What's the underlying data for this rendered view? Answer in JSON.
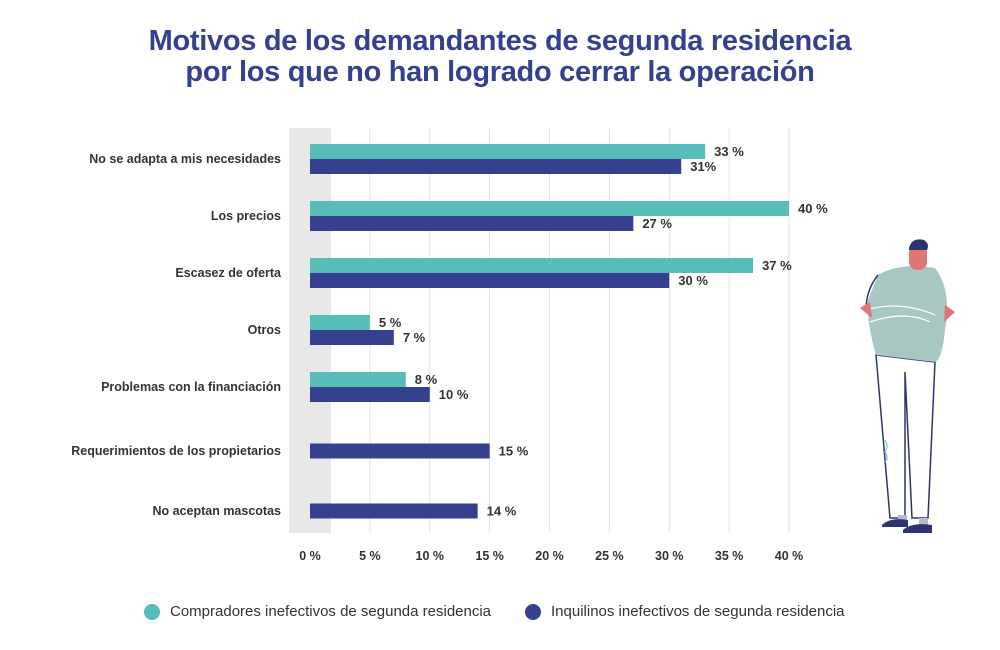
{
  "title_lines": [
    "Motivos de los demandantes de segunda residencia",
    "por los que no han logrado cerrar la operación"
  ],
  "chart_data": {
    "type": "bar",
    "orientation": "horizontal",
    "title": "Motivos de los demandantes de segunda residencia por los que no han logrado cerrar la operación",
    "categories": [
      "No se adapta a mis necesidades",
      "Los precios",
      "Escasez de oferta",
      "Otros",
      "Problemas con la financiación",
      "Requerimientos de los propietarios",
      "No aceptan mascotas"
    ],
    "series": [
      {
        "name": "Compradores inefectivos de segunda residencia",
        "color": "#56bdb8",
        "values": [
          33,
          40,
          37,
          5,
          8,
          null,
          null
        ],
        "labels": [
          "33 %",
          "40 %",
          "37 %",
          "5 %",
          "8 %",
          null,
          null
        ]
      },
      {
        "name": "Inquilinos inefectivos de segunda residencia",
        "color": "#35418f",
        "values": [
          31,
          27,
          30,
          7,
          10,
          15,
          14
        ],
        "labels": [
          "31%",
          "27 %",
          "30 %",
          "7 %",
          "10 %",
          "15 %",
          "14 %"
        ]
      }
    ],
    "xlim": [
      0,
      40
    ],
    "ticks": [
      0,
      5,
      10,
      15,
      20,
      25,
      30,
      35,
      40
    ],
    "tick_labels": [
      "0 %",
      "5 %",
      "10 %",
      "15 %",
      "20 %",
      "25 %",
      "30 %",
      "35 %",
      "40 %"
    ],
    "grid": true,
    "legend_position": "bottom"
  }
}
